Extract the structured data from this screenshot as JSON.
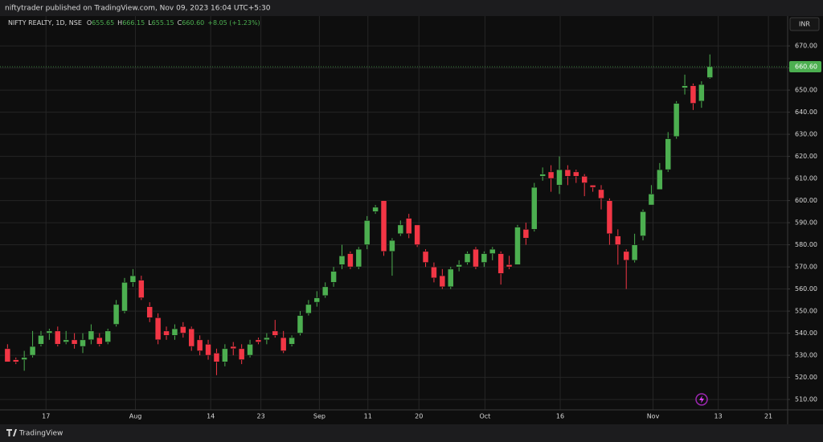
{
  "header": {
    "published": "niftytrader published on TradingView.com, Nov 09, 2023 16:04 UTC+5:30",
    "currency": "INR",
    "brand": "TradingView"
  },
  "chart_data": {
    "type": "candlestick",
    "symbol": "NIFTY REALTY, 1D, NSE",
    "ohlc_legend": [
      {
        "key": "O",
        "value": "655.65"
      },
      {
        "key": "H",
        "value": "666.15"
      },
      {
        "key": "L",
        "value": "655.15"
      },
      {
        "key": "C",
        "value": "660.60"
      }
    ],
    "change": "+8.05 (+1.23%)",
    "up_color": "#4caf50",
    "down_color": "#f23645",
    "open": [
      533,
      528,
      528,
      530,
      535,
      540,
      541,
      536,
      537,
      534,
      537,
      538,
      536,
      544,
      550,
      563,
      564,
      552,
      547,
      541,
      539,
      543,
      542,
      537,
      535,
      531,
      527,
      534,
      533,
      530,
      537,
      537,
      541,
      538,
      535,
      540,
      549,
      554,
      557,
      563,
      571,
      576,
      570,
      580,
      595,
      600,
      577,
      585,
      592,
      589,
      577,
      570,
      566,
      561,
      570,
      572,
      578,
      572,
      576,
      576,
      571,
      571,
      587,
      587,
      611,
      613,
      607,
      614,
      613,
      611,
      607,
      605,
      600,
      584,
      577,
      573,
      584,
      598,
      605,
      614,
      629,
      651,
      652,
      645,
      655.65
    ],
    "high": [
      535,
      529,
      532,
      541,
      541,
      542,
      543,
      541,
      540,
      540,
      544,
      540,
      542,
      555,
      565,
      569,
      566,
      554,
      549,
      543,
      544,
      545,
      543,
      539,
      537,
      533,
      535,
      536,
      535,
      537,
      538,
      540,
      546,
      541,
      539,
      550,
      555,
      559,
      563,
      570,
      580,
      577,
      579,
      593,
      598,
      600,
      583,
      591,
      594,
      589,
      578,
      572,
      569,
      570,
      573,
      577,
      579,
      577,
      579,
      577,
      575,
      589,
      590,
      608,
      615,
      616,
      620,
      616,
      614,
      612,
      607,
      607,
      601,
      587,
      578,
      585,
      596,
      607,
      617,
      631,
      645,
      657,
      653,
      654,
      666.15
    ],
    "low": [
      527,
      526,
      523,
      529,
      534,
      537,
      534,
      535,
      533,
      531,
      535,
      534,
      535,
      543,
      549,
      561,
      555,
      545,
      535,
      537,
      537,
      538,
      532,
      530,
      528,
      521,
      525,
      530,
      526,
      529,
      535,
      535,
      538,
      531,
      534,
      539,
      548,
      552,
      556,
      561,
      569,
      569,
      569,
      578,
      594,
      575,
      566,
      584,
      583,
      579,
      570,
      563,
      560,
      560,
      568,
      571,
      569,
      570,
      573,
      562,
      569,
      571,
      580,
      586,
      609,
      604,
      603,
      607,
      608,
      602,
      604,
      596,
      580,
      571,
      560,
      572,
      582,
      598,
      605,
      613,
      628,
      648,
      641,
      642,
      655.15
    ],
    "close": [
      527,
      527,
      529,
      534,
      539,
      541,
      535,
      537,
      535,
      537,
      541,
      535,
      541,
      553,
      563,
      566,
      556,
      547,
      537,
      539,
      542,
      540,
      534,
      532,
      530,
      527,
      533,
      533,
      528,
      535,
      536,
      538,
      539,
      532,
      538,
      548,
      553,
      556,
      561,
      568,
      575,
      570,
      578,
      591,
      597,
      577,
      582,
      589,
      585,
      580,
      572,
      565,
      561,
      569,
      571,
      576,
      570,
      576,
      578,
      567,
      570,
      588,
      583,
      606,
      612,
      610,
      614,
      611,
      611,
      608,
      606,
      601,
      585,
      580,
      573,
      580,
      595,
      603,
      614,
      628,
      644,
      652,
      644,
      652.55,
      660.6
    ],
    "xlim": [
      -0.9,
      93.3
    ],
    "xticks": [
      {
        "value": 4.6,
        "label": "17"
      },
      {
        "value": 15.3,
        "label": "Aug"
      },
      {
        "value": 24.3,
        "label": "14"
      },
      {
        "value": 30.3,
        "label": "23"
      },
      {
        "value": 37.3,
        "label": "Sep"
      },
      {
        "value": 43.1,
        "label": "11"
      },
      {
        "value": 49.2,
        "label": "20"
      },
      {
        "value": 57.1,
        "label": "Oct"
      },
      {
        "value": 66.1,
        "label": "16"
      },
      {
        "value": 77.2,
        "label": "Nov"
      },
      {
        "value": 85.0,
        "label": "13"
      },
      {
        "value": 91.0,
        "label": "21"
      }
    ],
    "ylim": [
      505.3,
      683.5
    ],
    "yticks": [
      {
        "value": 510,
        "label": "510.00"
      },
      {
        "value": 520,
        "label": "520.00"
      },
      {
        "value": 530,
        "label": "530.00"
      },
      {
        "value": 540,
        "label": "540.00"
      },
      {
        "value": 550,
        "label": "550.00"
      },
      {
        "value": 560,
        "label": "560.00"
      },
      {
        "value": 570,
        "label": "570.00"
      },
      {
        "value": 580,
        "label": "580.00"
      },
      {
        "value": 590,
        "label": "590.00"
      },
      {
        "value": 600,
        "label": "600.00"
      },
      {
        "value": 610,
        "label": "610.00"
      },
      {
        "value": 620,
        "label": "620.00"
      },
      {
        "value": 630,
        "label": "630.00"
      },
      {
        "value": 640,
        "label": "640.00"
      },
      {
        "value": 650,
        "label": "650.00"
      },
      {
        "value": 660,
        "label": "660.00"
      },
      {
        "value": 670,
        "label": "670.00"
      }
    ],
    "last_price": {
      "value": 660.6,
      "label": "660.60"
    },
    "grid": true
  }
}
